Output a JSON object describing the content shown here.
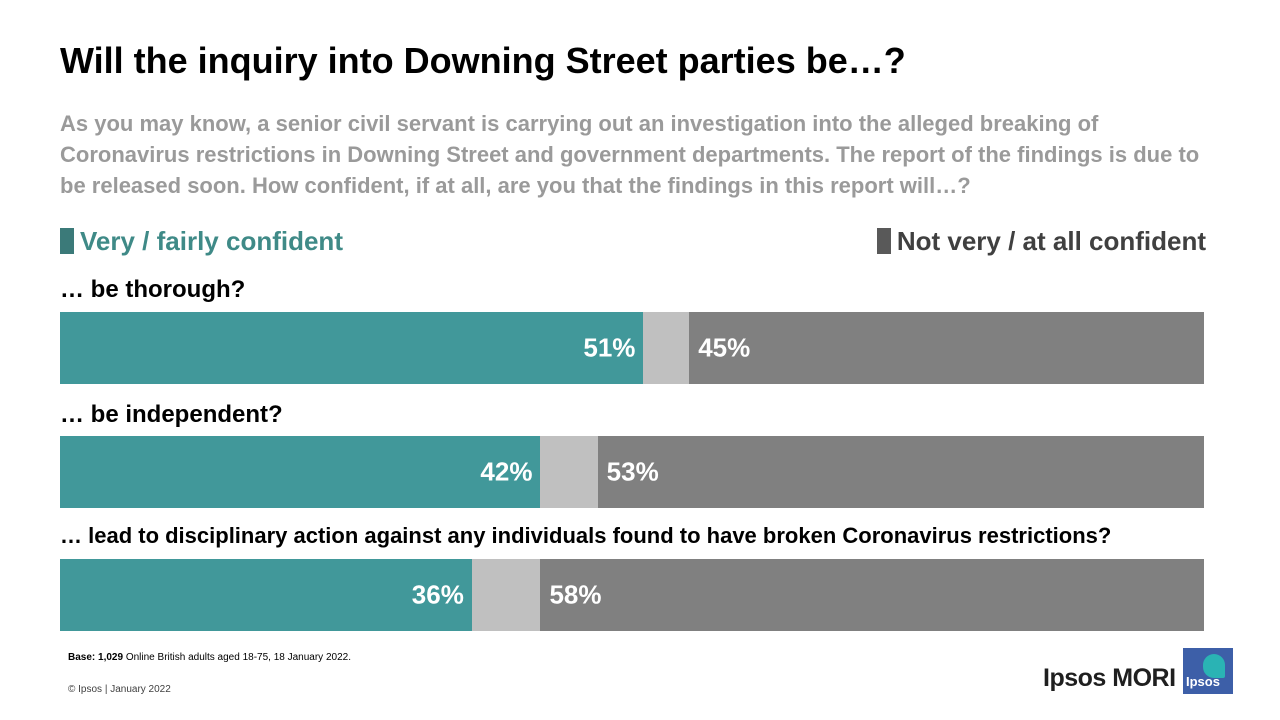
{
  "title": "Will the inquiry into Downing Street parties be…?",
  "subtitle": "As you may know, a senior civil servant is carrying out an investigation into the alleged breaking of Coronavirus restrictions in Downing Street and government departments. The report of the findings is due to be released soon. How confident, if at all, are you that the findings in this report will…?",
  "chart_data": {
    "type": "bar",
    "orientation": "horizontal-stacked",
    "categories": [
      "… be thorough?",
      "… be independent?",
      "… lead to disciplinary action against any individuals found to have broken Coronavirus restrictions?"
    ],
    "series": [
      {
        "name": "Very / fairly confident",
        "values": [
          51,
          42,
          36
        ],
        "labels": [
          "51%",
          "42%",
          "36%"
        ],
        "color": "#41989a"
      },
      {
        "values": [
          4,
          5,
          6
        ],
        "color": "#c0c0c0"
      },
      {
        "name": "Not very / at all confident",
        "values": [
          45,
          53,
          58
        ],
        "labels": [
          "45%",
          "53%",
          "58%"
        ],
        "color": "#808080"
      }
    ],
    "legend": {
      "positive": {
        "label": "Very / fairly confident",
        "color": "#3f8a87",
        "swatch_color": "#3b7a79",
        "placement": "top-left"
      },
      "negative": {
        "label": "Not very / at all confident",
        "color": "#404040",
        "swatch_color": "#595959",
        "placement": "top-right"
      }
    },
    "xlim": [
      0,
      100
    ],
    "grid": false
  },
  "footer": {
    "base_label": "Base:",
    "base_n": "1,029",
    "base_text": " Online British adults aged 18-75, 18 January 2022.",
    "copyright": "© Ipsos | January 2022"
  },
  "brand": {
    "name": "Ipsos MORI",
    "logo_text": "Ipsos",
    "logo_color": "#3d5fa8",
    "logo_accent": "#2ab3b4"
  }
}
